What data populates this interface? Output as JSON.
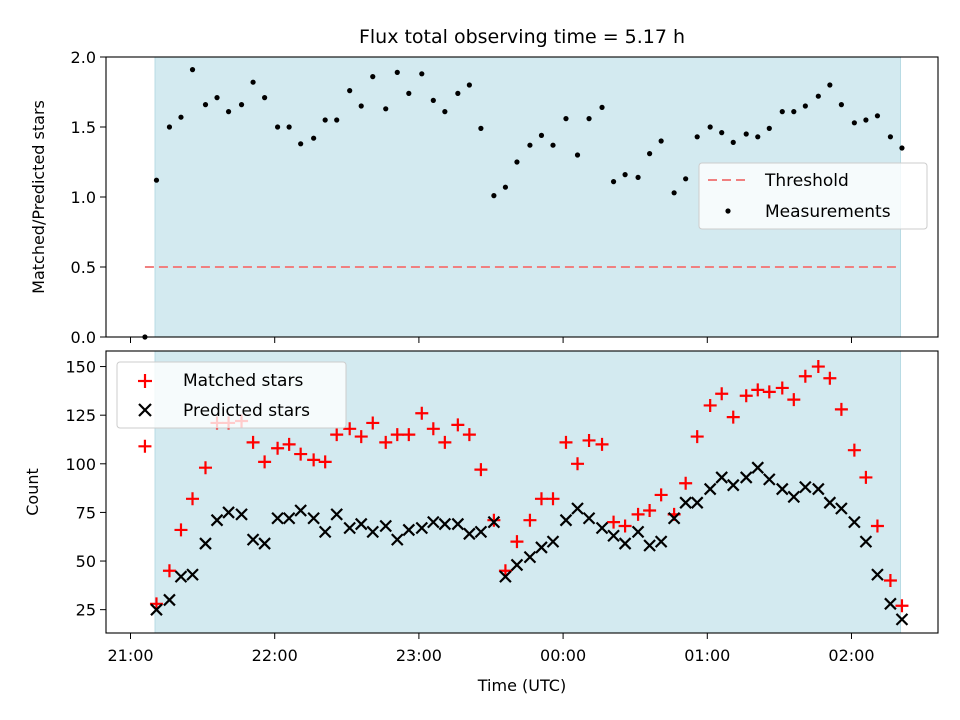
{
  "chart_data": {
    "type": "scatter",
    "title": "Flux total observing time = 5.17 h",
    "xlabel": "Time (UTC)",
    "x_ticks": [
      "21:00",
      "22:00",
      "23:00",
      "00:00",
      "01:00",
      "02:00"
    ],
    "x_tick_hours": [
      21,
      22,
      23,
      24,
      25,
      26
    ],
    "xlim_hours": [
      20.83,
      26.6
    ],
    "observing_window_hours": [
      21.17,
      26.34
    ],
    "colors": {
      "observing_window": "#d3eaf0",
      "threshold": "#f08080",
      "measurements": "#000000",
      "matched": "#ff0000",
      "predicted": "#000000"
    },
    "panels": [
      {
        "ylabel": "Matched/Predicted stars",
        "ylim": [
          0,
          2
        ],
        "y_ticks": [
          "0.0",
          "0.5",
          "1.0",
          "1.5",
          "2.0"
        ],
        "y_tick_values": [
          0,
          0.5,
          1,
          1.5,
          2
        ],
        "legend": {
          "placement": "center-right",
          "entries": [
            "Threshold",
            "Measurements"
          ]
        },
        "threshold": {
          "name": "Threshold",
          "value": 0.5,
          "x_range_hours": [
            21.1,
            26.34
          ]
        },
        "series": [
          {
            "name": "Measurements",
            "marker": "dot",
            "points": [
              [
                21.1,
                0.0
              ],
              [
                21.18,
                1.12
              ],
              [
                21.27,
                1.5
              ],
              [
                21.35,
                1.57
              ],
              [
                21.43,
                1.91
              ],
              [
                21.52,
                1.66
              ],
              [
                21.6,
                1.71
              ],
              [
                21.68,
                1.61
              ],
              [
                21.77,
                1.66
              ],
              [
                21.85,
                1.82
              ],
              [
                21.93,
                1.71
              ],
              [
                22.02,
                1.5
              ],
              [
                22.1,
                1.5
              ],
              [
                22.18,
                1.38
              ],
              [
                22.27,
                1.42
              ],
              [
                22.35,
                1.55
              ],
              [
                22.43,
                1.55
              ],
              [
                22.52,
                1.76
              ],
              [
                22.6,
                1.65
              ],
              [
                22.68,
                1.86
              ],
              [
                22.77,
                1.63
              ],
              [
                22.85,
                1.89
              ],
              [
                22.93,
                1.74
              ],
              [
                23.02,
                1.88
              ],
              [
                23.1,
                1.69
              ],
              [
                23.18,
                1.61
              ],
              [
                23.27,
                1.74
              ],
              [
                23.35,
                1.8
              ],
              [
                23.43,
                1.49
              ],
              [
                23.52,
                1.01
              ],
              [
                23.6,
                1.07
              ],
              [
                23.68,
                1.25
              ],
              [
                23.77,
                1.37
              ],
              [
                23.85,
                1.44
              ],
              [
                23.93,
                1.37
              ],
              [
                24.02,
                1.56
              ],
              [
                24.1,
                1.3
              ],
              [
                24.18,
                1.56
              ],
              [
                24.27,
                1.64
              ],
              [
                24.35,
                1.11
              ],
              [
                24.43,
                1.16
              ],
              [
                24.52,
                1.14
              ],
              [
                24.6,
                1.31
              ],
              [
                24.68,
                1.4
              ],
              [
                24.77,
                1.03
              ],
              [
                24.85,
                1.13
              ],
              [
                24.93,
                1.43
              ],
              [
                25.02,
                1.5
              ],
              [
                25.1,
                1.46
              ],
              [
                25.18,
                1.39
              ],
              [
                25.27,
                1.45
              ],
              [
                25.35,
                1.43
              ],
              [
                25.43,
                1.49
              ],
              [
                25.52,
                1.61
              ],
              [
                25.6,
                1.61
              ],
              [
                25.68,
                1.65
              ],
              [
                25.77,
                1.72
              ],
              [
                25.85,
                1.8
              ],
              [
                25.93,
                1.66
              ],
              [
                26.02,
                1.53
              ],
              [
                26.1,
                1.55
              ],
              [
                26.18,
                1.58
              ],
              [
                26.27,
                1.43
              ],
              [
                26.35,
                1.35
              ]
            ]
          }
        ]
      },
      {
        "ylabel": "Count",
        "ylim": [
          13,
          158
        ],
        "y_ticks": [
          "25",
          "50",
          "75",
          "100",
          "125",
          "150"
        ],
        "y_tick_values": [
          25,
          50,
          75,
          100,
          125,
          150
        ],
        "legend": {
          "placement": "upper-left",
          "entries": [
            "Matched stars",
            "Predicted stars"
          ]
        },
        "series": [
          {
            "name": "Matched stars",
            "marker": "plus",
            "points": [
              [
                21.1,
                109
              ],
              [
                21.18,
                28
              ],
              [
                21.27,
                45
              ],
              [
                21.35,
                66
              ],
              [
                21.43,
                82
              ],
              [
                21.52,
                98
              ],
              [
                21.6,
                121
              ],
              [
                21.68,
                121
              ],
              [
                21.77,
                122
              ],
              [
                21.85,
                111
              ],
              [
                21.93,
                101
              ],
              [
                22.02,
                108
              ],
              [
                22.1,
                110
              ],
              [
                22.18,
                105
              ],
              [
                22.27,
                102
              ],
              [
                22.35,
                101
              ],
              [
                22.43,
                115
              ],
              [
                22.52,
                118
              ],
              [
                22.6,
                114
              ],
              [
                22.68,
                121
              ],
              [
                22.77,
                111
              ],
              [
                22.85,
                115
              ],
              [
                22.93,
                115
              ],
              [
                23.02,
                126
              ],
              [
                23.1,
                118
              ],
              [
                23.18,
                111
              ],
              [
                23.27,
                120
              ],
              [
                23.35,
                115
              ],
              [
                23.43,
                97
              ],
              [
                23.52,
                71
              ],
              [
                23.6,
                45
              ],
              [
                23.68,
                60
              ],
              [
                23.77,
                71
              ],
              [
                23.85,
                82
              ],
              [
                23.93,
                82
              ],
              [
                24.02,
                111
              ],
              [
                24.1,
                100
              ],
              [
                24.18,
                112
              ],
              [
                24.27,
                110
              ],
              [
                24.35,
                70
              ],
              [
                24.43,
                68
              ],
              [
                24.52,
                74
              ],
              [
                24.6,
                76
              ],
              [
                24.68,
                84
              ],
              [
                24.77,
                74
              ],
              [
                24.85,
                90
              ],
              [
                24.93,
                114
              ],
              [
                25.02,
                130
              ],
              [
                25.1,
                136
              ],
              [
                25.18,
                124
              ],
              [
                25.27,
                135
              ],
              [
                25.35,
                138
              ],
              [
                25.43,
                137
              ],
              [
                25.52,
                139
              ],
              [
                25.6,
                133
              ],
              [
                25.68,
                145
              ],
              [
                25.77,
                150
              ],
              [
                25.85,
                144
              ],
              [
                25.93,
                128
              ],
              [
                26.02,
                107
              ],
              [
                26.1,
                93
              ],
              [
                26.18,
                68
              ],
              [
                26.27,
                40
              ],
              [
                26.35,
                27
              ]
            ]
          },
          {
            "name": "Predicted stars",
            "marker": "x",
            "points": [
              [
                21.18,
                25
              ],
              [
                21.27,
                30
              ],
              [
                21.35,
                42
              ],
              [
                21.43,
                43
              ],
              [
                21.52,
                59
              ],
              [
                21.6,
                71
              ],
              [
                21.68,
                75
              ],
              [
                21.77,
                74
              ],
              [
                21.85,
                61
              ],
              [
                21.93,
                59
              ],
              [
                22.02,
                72
              ],
              [
                22.1,
                72
              ],
              [
                22.18,
                76
              ],
              [
                22.27,
                72
              ],
              [
                22.35,
                65
              ],
              [
                22.43,
                74
              ],
              [
                22.52,
                67
              ],
              [
                22.6,
                69
              ],
              [
                22.68,
                65
              ],
              [
                22.77,
                68
              ],
              [
                22.85,
                61
              ],
              [
                22.93,
                66
              ],
              [
                23.02,
                67
              ],
              [
                23.1,
                70
              ],
              [
                23.18,
                69
              ],
              [
                23.27,
                69
              ],
              [
                23.35,
                64
              ],
              [
                23.43,
                65
              ],
              [
                23.52,
                70
              ],
              [
                23.6,
                42
              ],
              [
                23.68,
                48
              ],
              [
                23.77,
                52
              ],
              [
                23.85,
                57
              ],
              [
                23.93,
                60
              ],
              [
                24.02,
                71
              ],
              [
                24.1,
                77
              ],
              [
                24.18,
                72
              ],
              [
                24.27,
                67
              ],
              [
                24.35,
                63
              ],
              [
                24.43,
                59
              ],
              [
                24.52,
                65
              ],
              [
                24.6,
                58
              ],
              [
                24.68,
                60
              ],
              [
                24.77,
                72
              ],
              [
                24.85,
                80
              ],
              [
                24.93,
                80
              ],
              [
                25.02,
                87
              ],
              [
                25.1,
                93
              ],
              [
                25.18,
                89
              ],
              [
                25.27,
                93
              ],
              [
                25.35,
                98
              ],
              [
                25.43,
                92
              ],
              [
                25.52,
                87
              ],
              [
                25.6,
                83
              ],
              [
                25.68,
                88
              ],
              [
                25.77,
                87
              ],
              [
                25.85,
                80
              ],
              [
                25.93,
                77
              ],
              [
                26.02,
                70
              ],
              [
                26.1,
                60
              ],
              [
                26.18,
                43
              ],
              [
                26.27,
                28
              ],
              [
                26.35,
                20
              ]
            ]
          }
        ]
      }
    ]
  }
}
